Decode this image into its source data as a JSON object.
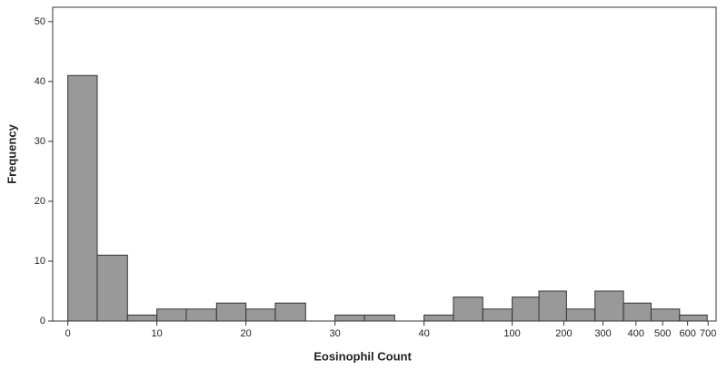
{
  "chart_data": {
    "type": "histogram",
    "x_label": "Eosinophil Count",
    "y_label": "Frequency",
    "bins": [
      0,
      3.3,
      6.7,
      10,
      13.3,
      16.7,
      20,
      23.3,
      26.7,
      30,
      33.3,
      36.7,
      40,
      43.3,
      46.6,
      49.9,
      52.9,
      56.0,
      59.2,
      62.4,
      65.5,
      68.7,
      71.8
    ],
    "values": [
      41,
      11,
      1,
      2,
      2,
      3,
      2,
      3,
      0,
      1,
      1,
      0,
      1,
      4,
      2,
      4,
      5,
      2,
      5,
      3,
      2,
      1
    ],
    "color": "#999999",
    "xlim": [
      -1.7,
      72.8
    ],
    "ylim": [
      0,
      52.4
    ],
    "xticks": [
      0,
      10,
      20,
      30,
      40,
      {
        "value": 49.9,
        "label": "100"
      },
      {
        "value": 55.7,
        "label": "200"
      },
      {
        "value": 60.1,
        "label": "300"
      },
      {
        "value": 63.8,
        "label": "400"
      },
      {
        "value": 66.8,
        "label": "500"
      },
      {
        "value": 69.6,
        "label": "600"
      },
      {
        "value": 71.9,
        "label": "700"
      }
    ],
    "yticks": [
      0,
      10,
      20,
      30,
      40,
      50
    ]
  }
}
